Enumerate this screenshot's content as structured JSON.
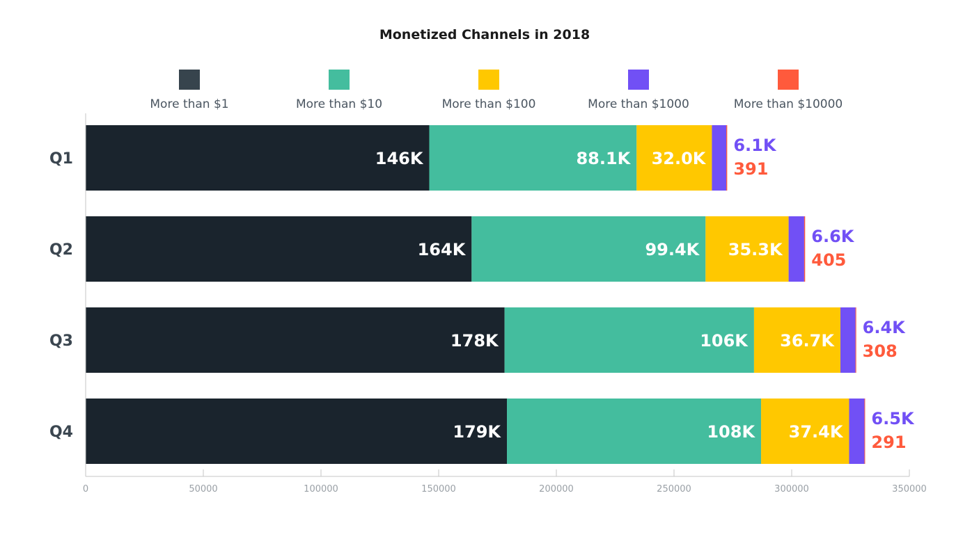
{
  "chart_data": {
    "type": "bar",
    "orientation": "horizontal",
    "stacked": true,
    "title": "Monetized Channels in 2018",
    "categories": [
      "Q1",
      "Q2",
      "Q3",
      "Q4"
    ],
    "series": [
      {
        "name": "More than $1",
        "color": "#1a242d",
        "legend_color": "#37444d",
        "values": [
          146000,
          164000,
          178000,
          179000
        ],
        "labels": [
          "146K",
          "164K",
          "178K",
          "179K"
        ]
      },
      {
        "name": "More than $10",
        "color": "#44bd9e",
        "values": [
          88100,
          99400,
          106000,
          108000
        ],
        "labels": [
          "88.1K",
          "99.4K",
          "106K",
          "108K"
        ]
      },
      {
        "name": "More than $100",
        "color": "#ffc800",
        "values": [
          32000,
          35300,
          36700,
          37400
        ],
        "labels": [
          "32.0K",
          "35.3K",
          "36.7K",
          "37.4K"
        ]
      },
      {
        "name": "More than $1000",
        "color": "#7150f5",
        "values": [
          6100,
          6600,
          6400,
          6500
        ],
        "labels": [
          "6.1K",
          "6.6K",
          "6.4K",
          "6.5K"
        ]
      },
      {
        "name": "More than $10000",
        "color": "#ff5a3c",
        "values": [
          391,
          405,
          308,
          291
        ],
        "labels": [
          "391",
          "405",
          "308",
          "291"
        ]
      }
    ],
    "xlim": [
      0,
      350000
    ],
    "xticks": [
      "0",
      "50000",
      "100000",
      "150000",
      "200000",
      "250000",
      "300000",
      "350000"
    ],
    "legend_position": "top",
    "grid": false
  }
}
